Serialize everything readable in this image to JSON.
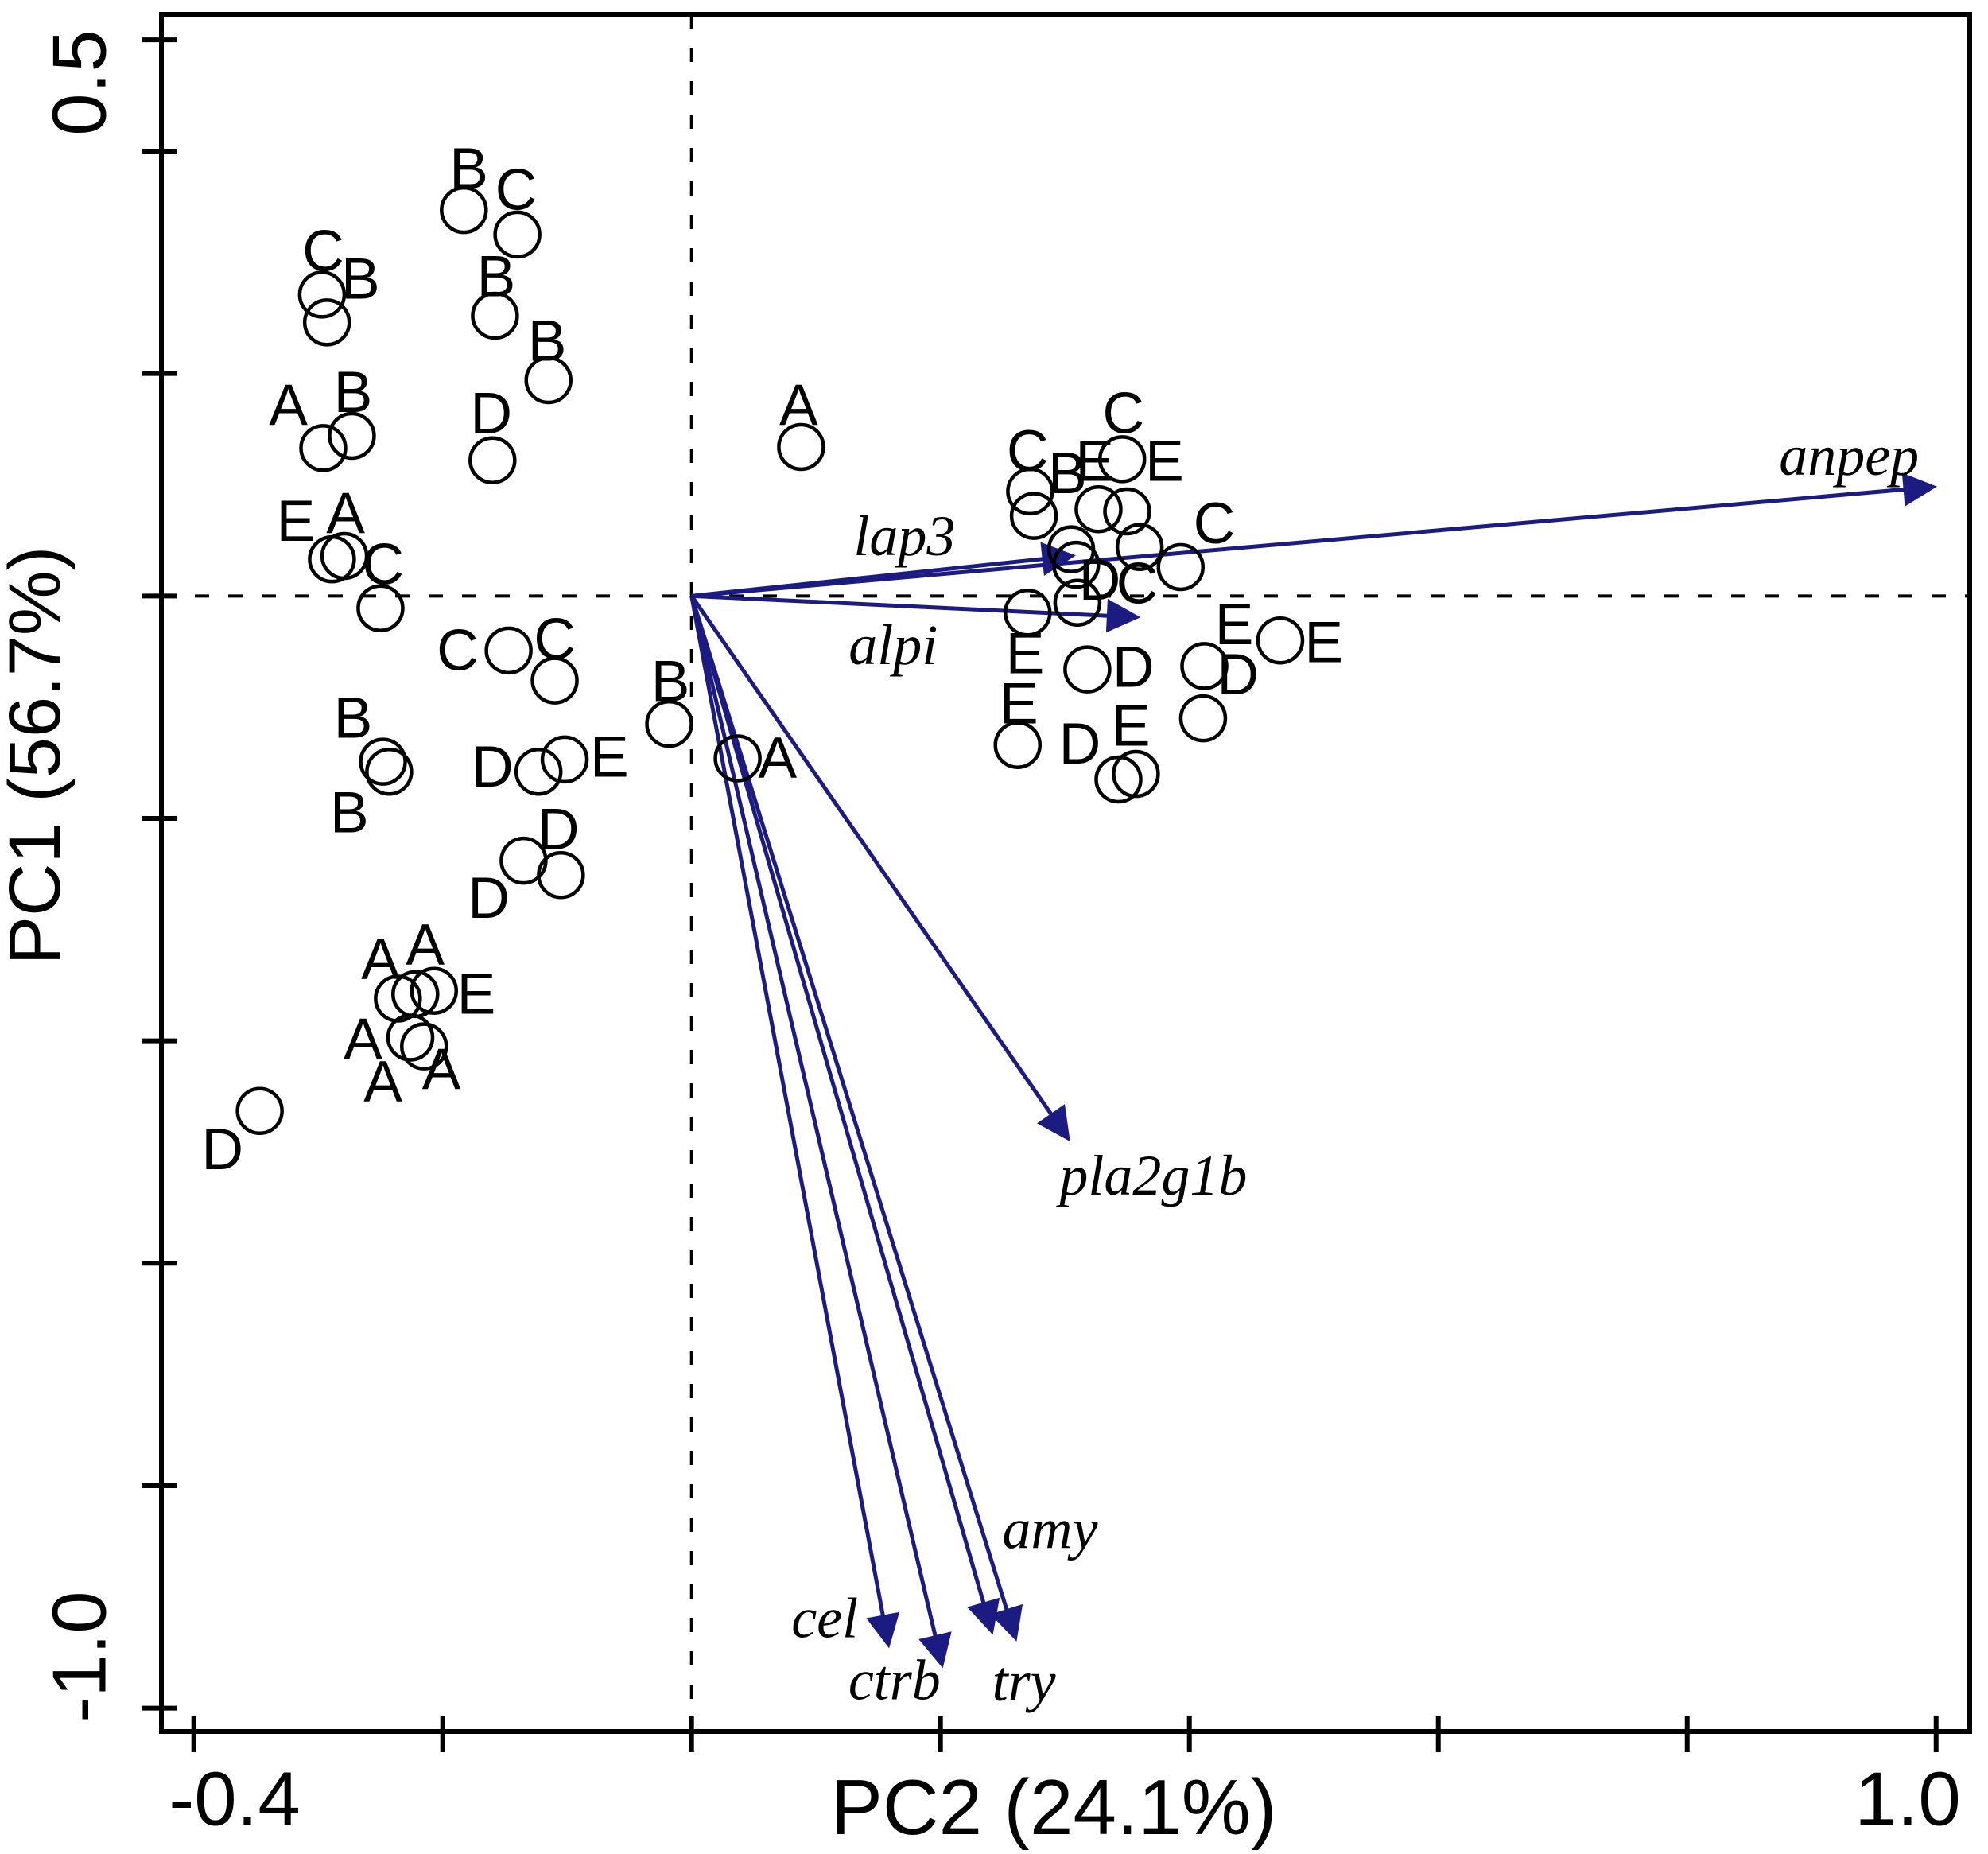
{
  "chart_data": {
    "type": "scatter",
    "subtype": "pca-biplot",
    "title": "",
    "xlabel": "PC2 (24.1%)",
    "ylabel": "PC1 (56.7%)",
    "xlim": [
      -0.426,
      1.027
    ],
    "ylim": [
      -1.021,
      0.523
    ],
    "grid": "dashed-crosshair-at-origin",
    "legend_position": "none",
    "group_letters": [
      "A",
      "B",
      "C",
      "D",
      "E"
    ],
    "x_ticks": [
      -0.4,
      -0.2,
      0.0,
      0.2,
      0.4,
      0.6,
      0.8,
      1.0
    ],
    "x_tick_labels": [
      {
        "value": -0.4,
        "label": "-0.4"
      },
      {
        "value": 1.0,
        "label": "1.0"
      }
    ],
    "y_ticks": [
      0.5,
      0.4,
      0.2,
      0.0,
      -0.2,
      -0.4,
      -0.6,
      -0.8,
      -1.0
    ],
    "y_tick_labels": [
      {
        "value": 0.5,
        "label": "0.5"
      },
      {
        "value": -1.0,
        "label": "-1.0"
      }
    ],
    "points": [
      {
        "x": -0.183,
        "y": 0.347
      },
      {
        "x": -0.14,
        "y": 0.325
      },
      {
        "x": -0.297,
        "y": 0.271
      },
      {
        "x": -0.293,
        "y": 0.246
      },
      {
        "x": -0.158,
        "y": 0.252
      },
      {
        "x": -0.115,
        "y": 0.194
      },
      {
        "x": -0.273,
        "y": 0.144
      },
      {
        "x": -0.296,
        "y": 0.133
      },
      {
        "x": -0.16,
        "y": 0.122
      },
      {
        "x": -0.289,
        "y": 0.033
      },
      {
        "x": -0.279,
        "y": 0.036
      },
      {
        "x": -0.25,
        "y": -0.011
      },
      {
        "x": -0.147,
        "y": -0.049
      },
      {
        "x": -0.11,
        "y": -0.076
      },
      {
        "x": -0.018,
        "y": -0.115
      },
      {
        "x": -0.123,
        "y": -0.158
      },
      {
        "x": -0.102,
        "y": -0.147
      },
      {
        "x": -0.248,
        "y": -0.149
      },
      {
        "x": -0.243,
        "y": -0.158
      },
      {
        "x": -0.135,
        "y": -0.238
      },
      {
        "x": -0.105,
        "y": -0.251
      },
      {
        "x": 0.037,
        "y": -0.146
      },
      {
        "x": -0.236,
        "y": -0.362
      },
      {
        "x": -0.222,
        "y": -0.358
      },
      {
        "x": -0.207,
        "y": -0.355
      },
      {
        "x": -0.226,
        "y": -0.397
      },
      {
        "x": -0.215,
        "y": -0.405
      },
      {
        "x": -0.347,
        "y": -0.463
      },
      {
        "x": 0.088,
        "y": 0.134
      },
      {
        "x": 0.272,
        "y": 0.094
      },
      {
        "x": 0.275,
        "y": 0.072
      },
      {
        "x": 0.346,
        "y": 0.123
      },
      {
        "x": 0.327,
        "y": 0.078
      },
      {
        "x": 0.35,
        "y": 0.076
      },
      {
        "x": 0.305,
        "y": 0.042
      },
      {
        "x": 0.309,
        "y": 0.028
      },
      {
        "x": 0.36,
        "y": 0.044
      },
      {
        "x": 0.393,
        "y": 0.026
      },
      {
        "x": 0.31,
        "y": -0.006
      },
      {
        "x": 0.27,
        "y": -0.015
      },
      {
        "x": 0.318,
        "y": -0.066
      },
      {
        "x": 0.473,
        "y": -0.04
      },
      {
        "x": 0.412,
        "y": -0.063
      },
      {
        "x": 0.262,
        "y": -0.134
      },
      {
        "x": 0.411,
        "y": -0.11
      },
      {
        "x": 0.343,
        "y": -0.165
      },
      {
        "x": 0.357,
        "y": -0.16
      }
    ],
    "point_labels": [
      {
        "text": "A",
        "x": -0.324,
        "y": 0.171
      },
      {
        "text": "A",
        "x": -0.278,
        "y": 0.074
      },
      {
        "text": "A",
        "x": 0.069,
        "y": -0.146
      },
      {
        "text": "A",
        "x": 0.086,
        "y": 0.171
      },
      {
        "text": "A",
        "x": -0.25,
        "y": -0.327
      },
      {
        "text": "A",
        "x": -0.214,
        "y": -0.314
      },
      {
        "text": "A",
        "x": -0.264,
        "y": -0.399
      },
      {
        "text": "A",
        "x": -0.201,
        "y": -0.426
      },
      {
        "text": "A",
        "x": -0.248,
        "y": -0.437
      },
      {
        "text": "B",
        "x": -0.179,
        "y": 0.384
      },
      {
        "text": "B",
        "x": -0.266,
        "y": 0.285
      },
      {
        "text": "B",
        "x": -0.157,
        "y": 0.287
      },
      {
        "text": "B",
        "x": -0.116,
        "y": 0.229
      },
      {
        "text": "B",
        "x": -0.272,
        "y": 0.183
      },
      {
        "text": "B",
        "x": -0.017,
        "y": -0.077
      },
      {
        "text": "B",
        "x": -0.272,
        "y": -0.11
      },
      {
        "text": "B",
        "x": -0.275,
        "y": -0.195
      },
      {
        "text": "B",
        "x": 0.302,
        "y": 0.11
      },
      {
        "text": "C",
        "x": -0.141,
        "y": 0.365
      },
      {
        "text": "C",
        "x": -0.296,
        "y": 0.31
      },
      {
        "text": "C",
        "x": -0.248,
        "y": 0.028
      },
      {
        "text": "C",
        "x": -0.188,
        "y": -0.049
      },
      {
        "text": "C",
        "x": -0.11,
        "y": -0.039
      },
      {
        "text": "C",
        "x": 0.27,
        "y": 0.13
      },
      {
        "text": "C",
        "x": 0.347,
        "y": 0.164
      },
      {
        "text": "C",
        "x": 0.42,
        "y": 0.065
      },
      {
        "text": "C",
        "x": 0.358,
        "y": 0.011
      },
      {
        "text": "D",
        "x": -0.161,
        "y": 0.164
      },
      {
        "text": "D",
        "x": -0.16,
        "y": -0.154
      },
      {
        "text": "D",
        "x": -0.107,
        "y": -0.21
      },
      {
        "text": "D",
        "x": -0.163,
        "y": -0.272
      },
      {
        "text": "D",
        "x": -0.377,
        "y": -0.498
      },
      {
        "text": "D",
        "x": 0.328,
        "y": 0.014
      },
      {
        "text": "D",
        "x": 0.355,
        "y": -0.064
      },
      {
        "text": "D",
        "x": 0.439,
        "y": -0.071
      },
      {
        "text": "D",
        "x": 0.312,
        "y": -0.133
      },
      {
        "text": "E",
        "x": -0.318,
        "y": 0.067
      },
      {
        "text": "E",
        "x": -0.066,
        "y": -0.145
      },
      {
        "text": "E",
        "x": -0.173,
        "y": -0.358
      },
      {
        "text": "E",
        "x": 0.324,
        "y": 0.121
      },
      {
        "text": "E",
        "x": 0.38,
        "y": 0.121
      },
      {
        "text": "E",
        "x": 0.436,
        "y": -0.026
      },
      {
        "text": "E",
        "x": 0.508,
        "y": -0.042
      },
      {
        "text": "E",
        "x": 0.268,
        "y": -0.052
      },
      {
        "text": "E",
        "x": 0.263,
        "y": -0.097
      },
      {
        "text": "E",
        "x": 0.353,
        "y": -0.117
      }
    ],
    "loadings": [
      {
        "name": "anpep",
        "x": 0.997,
        "y": 0.098,
        "label_x": 0.93,
        "label_y": 0.126
      },
      {
        "name": "lap3",
        "x": 0.305,
        "y": 0.036,
        "label_x": 0.171,
        "label_y": 0.054
      },
      {
        "name": "alpi",
        "x": 0.357,
        "y": -0.019,
        "label_x": 0.162,
        "label_y": -0.044
      },
      {
        "name": "pla2g1b",
        "x": 0.302,
        "y": -0.487,
        "label_x": 0.371,
        "label_y": -0.521
      },
      {
        "name": "amy",
        "x": 0.241,
        "y": -0.93,
        "label_x": 0.288,
        "label_y": -0.839
      },
      {
        "name": "try",
        "x": 0.26,
        "y": -0.936,
        "label_x": 0.267,
        "label_y": -0.976
      },
      {
        "name": "ctrb",
        "x": 0.201,
        "y": -0.96,
        "label_x": 0.163,
        "label_y": -0.975
      },
      {
        "name": "cel",
        "x": 0.158,
        "y": -0.942,
        "label_x": 0.107,
        "label_y": -0.919
      }
    ],
    "colors": {
      "arrow": "#1b1b82",
      "point_stroke": "#000000",
      "axis": "#000000",
      "text": "#000000",
      "background": "#ffffff"
    }
  }
}
